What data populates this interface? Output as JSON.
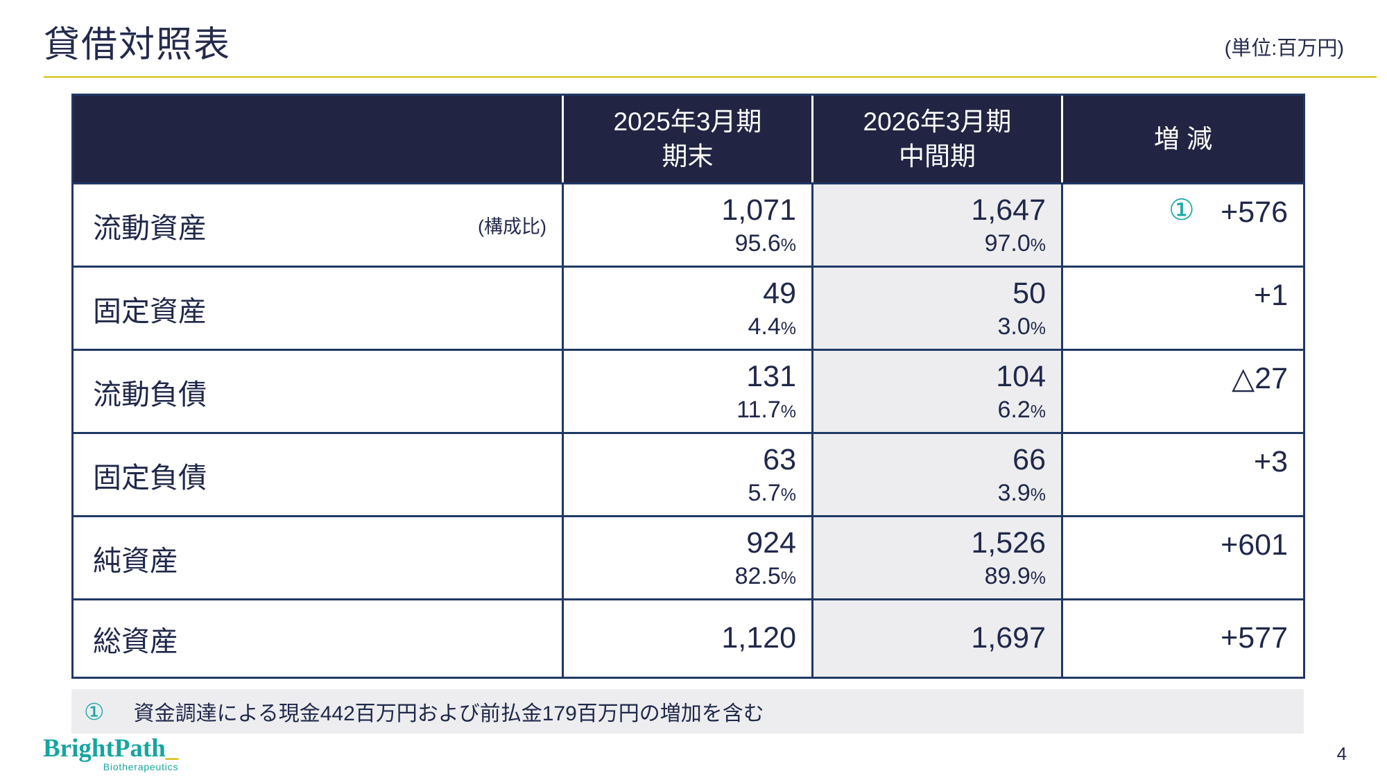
{
  "page": {
    "title": "貸借対照表",
    "unit_label": "(単位:百万円)",
    "page_number": "4"
  },
  "colors": {
    "header_bg": "#212543",
    "table_border": "#1F3864",
    "text_navy": "#20284A",
    "accent_teal": "#17A9A3",
    "accent_yellow": "#CDC300",
    "shaded_column_bg": "#EDEDEF",
    "footnote_bg": "#EDEDEF"
  },
  "table": {
    "percent_sign": "%",
    "headers": {
      "col2025_line1": "2025年3月期",
      "col2025_line2": "期末",
      "col2026_line1": "2026年3月期",
      "col2026_line2": "中間期",
      "delta": "増 減"
    },
    "rows": [
      {
        "label": "流動資産",
        "sublabel": "(構成比)",
        "v2025": "1,071",
        "p2025": "95.6",
        "v2026": "1,647",
        "p2026": "97.0",
        "delta": "+576",
        "delta_note": "①"
      },
      {
        "label": "固定資産",
        "v2025": "49",
        "p2025": "4.4",
        "v2026": "50",
        "p2026": "3.0",
        "delta": "+1"
      },
      {
        "label": "流動負債",
        "v2025": "131",
        "p2025": "11.7",
        "v2026": "104",
        "p2026": "6.2",
        "delta": "△27"
      },
      {
        "label": "固定負債",
        "v2025": "63",
        "p2025": "5.7",
        "v2026": "66",
        "p2026": "3.9",
        "delta": "+3"
      },
      {
        "label": "純資産",
        "v2025": "924",
        "p2025": "82.5",
        "v2026": "1,526",
        "p2026": "89.9",
        "delta": "+601"
      },
      {
        "label": "総資産",
        "v2025": "1,120",
        "v2026": "1,697",
        "delta": "+577"
      }
    ]
  },
  "footnote": {
    "marker": "①",
    "text": "資金調達による現金442百万円および前払金179百万円の増加を含む"
  },
  "logo": {
    "name": "BrightPath",
    "underscore": "_",
    "subtitle": "Biotherapeutics"
  }
}
